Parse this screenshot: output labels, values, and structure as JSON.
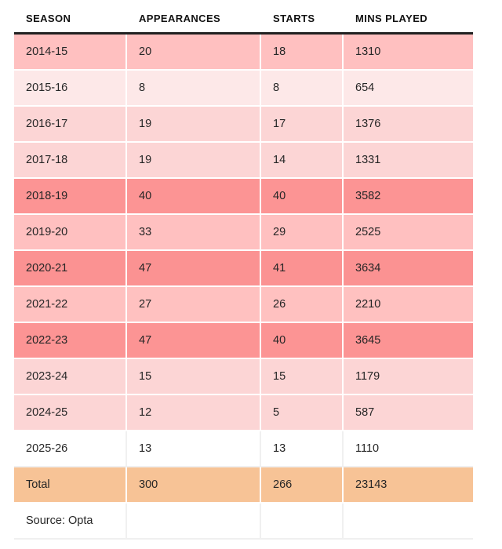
{
  "table": {
    "columns": [
      "SEASON",
      "APPEARANCES",
      "STARTS",
      "MINS PLAYED"
    ],
    "rows": [
      {
        "cells": [
          "2014-15",
          "20",
          "18",
          "1310"
        ],
        "bg": "#ffc0c0"
      },
      {
        "cells": [
          "2015-16",
          "8",
          "8",
          "654"
        ],
        "bg": "#fde8e8"
      },
      {
        "cells": [
          "2016-17",
          "19",
          "17",
          "1376"
        ],
        "bg": "#fcd5d5"
      },
      {
        "cells": [
          "2017-18",
          "19",
          "14",
          "1331"
        ],
        "bg": "#fcd5d5"
      },
      {
        "cells": [
          "2018-19",
          "40",
          "40",
          "3582"
        ],
        "bg": "#fc9494"
      },
      {
        "cells": [
          "2019-20",
          "33",
          "29",
          "2525"
        ],
        "bg": "#ffc0c0"
      },
      {
        "cells": [
          "2020-21",
          "47",
          "41",
          "3634"
        ],
        "bg": "#fb9292"
      },
      {
        "cells": [
          "2021-22",
          "27",
          "26",
          "2210"
        ],
        "bg": "#ffc1c0"
      },
      {
        "cells": [
          "2022-23",
          "47",
          "40",
          "3645"
        ],
        "bg": "#fc9494"
      },
      {
        "cells": [
          "2023-24",
          "15",
          "15",
          "1179"
        ],
        "bg": "#fcd5d5"
      },
      {
        "cells": [
          "2024-25",
          "12",
          "5",
          "587"
        ],
        "bg": "#fcd5d5"
      },
      {
        "cells": [
          "2025-26",
          "13",
          "13",
          "1110"
        ],
        "bg": "#ffffff"
      },
      {
        "cells": [
          "Total",
          "300",
          "266",
          "23143"
        ],
        "bg": "#f7c396"
      }
    ],
    "source": "Source: Opta"
  },
  "colors": {
    "header_rule": "#212121",
    "shade_high": "#fc9494",
    "shade_mid": "#ffc0c0",
    "shade_low": "#fcd5d5",
    "shade_min": "#fde8e8",
    "total_row": "#f7c396",
    "text": "#262626"
  },
  "chart_data": {
    "type": "table",
    "title": "",
    "columns": [
      "SEASON",
      "APPEARANCES",
      "STARTS",
      "MINS PLAYED"
    ],
    "rows": [
      [
        "2014-15",
        20,
        18,
        1310
      ],
      [
        "2015-16",
        8,
        8,
        654
      ],
      [
        "2016-17",
        19,
        17,
        1376
      ],
      [
        "2017-18",
        19,
        14,
        1331
      ],
      [
        "2018-19",
        40,
        40,
        3582
      ],
      [
        "2019-20",
        33,
        29,
        2525
      ],
      [
        "2020-21",
        47,
        41,
        3634
      ],
      [
        "2021-22",
        27,
        26,
        2210
      ],
      [
        "2022-23",
        47,
        40,
        3645
      ],
      [
        "2023-24",
        15,
        15,
        1179
      ],
      [
        "2024-25",
        12,
        5,
        587
      ],
      [
        "2025-26",
        13,
        13,
        1110
      ]
    ],
    "total": [
      "Total",
      300,
      266,
      23143
    ],
    "source": "Source: Opta",
    "layout_hints": {
      "heatmap_shading": "rows shaded pink by value intensity; total row peach; current season white",
      "header_rule": "thick black rule under header"
    }
  }
}
